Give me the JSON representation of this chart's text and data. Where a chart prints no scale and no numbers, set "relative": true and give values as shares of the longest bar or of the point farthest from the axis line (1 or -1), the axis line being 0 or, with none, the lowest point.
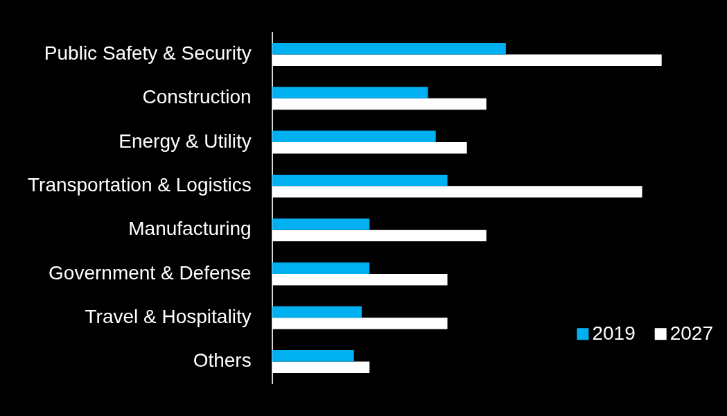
{
  "chart_data": {
    "type": "bar",
    "orientation": "horizontal",
    "relative": true,
    "legend": "bottom right",
    "categories": [
      "Public Safety & Security",
      "Construction",
      "Energy & Utility",
      "Transportation & Logistics",
      "Manufacturing",
      "Government & Defense",
      "Travel & Hospitality",
      "Others"
    ],
    "series": [
      {
        "name": "2019",
        "color": "#00b0f0",
        "values": [
          0.6,
          0.4,
          0.42,
          0.45,
          0.25,
          0.25,
          0.23,
          0.21
        ]
      },
      {
        "name": "2027",
        "color": "#ffffff",
        "values": [
          1,
          0.55,
          0.5,
          0.95,
          0.55,
          0.45,
          0.45,
          0.25
        ]
      }
    ]
  }
}
